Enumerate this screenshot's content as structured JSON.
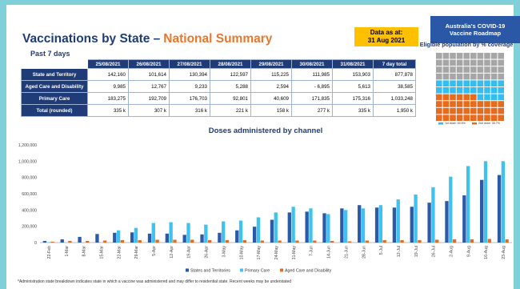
{
  "header": {
    "title": "Vaccinations by State –",
    "title_highlight": "National Summary",
    "date_label": "Data as at:",
    "date": "31 Aug 2021",
    "roadmap": "Australia's COVID-19 Vaccine Roadmap"
  },
  "table": {
    "title": "Past 7 days",
    "columns": [
      "25/08/2021",
      "26/08/2021",
      "27/08/2021",
      "28/08/2021",
      "29/08/2021",
      "30/08/2021",
      "31/08/2021",
      "7 day total"
    ],
    "rows": [
      {
        "label": "State and Territory",
        "cells": [
          "142,160",
          "101,614",
          "130,394",
          "122,597",
          "115,225",
          "111,985",
          "153,903",
          "877,878"
        ]
      },
      {
        "label": "Aged Care and Disability",
        "cells": [
          "9,985",
          "12,767",
          "9,233",
          "5,288",
          "2,594",
          "- 6,895",
          "5,613",
          "38,585"
        ]
      },
      {
        "label": "Primary Care",
        "cells": [
          "183,275",
          "192,709",
          "176,703",
          "92,801",
          "40,609",
          "171,835",
          "175,316",
          "1,033,248"
        ]
      },
      {
        "label": "Total (rounded)",
        "cells": [
          "335 k",
          "307 k",
          "316 k",
          "221 k",
          "158 k",
          "277 k",
          "335 k",
          "1,950 k"
        ]
      }
    ]
  },
  "chart_data": [
    {
      "type": "waffle",
      "title": "Eligible population by % coverage",
      "series": [
        {
          "name": "1st dose: 59.6%",
          "color": "#33bdf0",
          "values": [
            59.6
          ]
        },
        {
          "name": "2nd dose: 35.7%",
          "color": "#e66b1f",
          "values": [
            35.7
          ]
        }
      ]
    },
    {
      "type": "bar",
      "title": "Doses administered by channel",
      "categories": [
        "22-Feb",
        "1-Mar",
        "8-Mar",
        "15-Mar",
        "22-Mar",
        "29-Mar",
        "5-Apr",
        "12-Apr",
        "19-Apr",
        "26-Apr",
        "3-May",
        "10-May",
        "17-May",
        "24-May",
        "31-May",
        "7-Jun",
        "14-Jun",
        "21-Jun",
        "28-Jun",
        "5-Jul",
        "12-Jul",
        "19-Jul",
        "26-Jul",
        "2-Aug",
        "9-Aug",
        "16-Aug",
        "23-Aug"
      ],
      "series": [
        {
          "name": "States and Territories",
          "color": "#2a5aa8",
          "values": [
            20000,
            40000,
            70000,
            105000,
            120000,
            125000,
            110000,
            110000,
            95000,
            100000,
            120000,
            150000,
            195000,
            280000,
            370000,
            380000,
            360000,
            420000,
            460000,
            430000,
            430000,
            440000,
            490000,
            510000,
            580000,
            770000,
            830000
          ]
        },
        {
          "name": "Primary Care",
          "color": "#3ec3f0",
          "values": [
            5000,
            0,
            0,
            0,
            150000,
            180000,
            240000,
            250000,
            240000,
            220000,
            260000,
            270000,
            310000,
            370000,
            440000,
            420000,
            350000,
            400000,
            420000,
            460000,
            530000,
            590000,
            680000,
            810000,
            940000,
            1000000,
            1000000
          ]
        },
        {
          "name": "Aged Care and Disability",
          "color": "#e66b1f",
          "values": [
            10000,
            20000,
            20000,
            25000,
            30000,
            30000,
            35000,
            35000,
            35000,
            30000,
            30000,
            30000,
            25000,
            25000,
            25000,
            25000,
            20000,
            15000,
            25000,
            30000,
            30000,
            30000,
            35000,
            40000,
            40000,
            45000,
            40000
          ]
        }
      ],
      "ylim": [
        0,
        1200000
      ],
      "yticks": [
        0,
        {
          "value": 200000,
          "label": "200,000"
        },
        {
          "value": 400000,
          "label": "400,000"
        },
        {
          "value": 600000,
          "label": "600,000"
        },
        {
          "value": 800000,
          "label": "800,000"
        },
        {
          "value": 1000000,
          "label": "1,000,000"
        },
        {
          "value": 1200000,
          "label": "1,200,000"
        }
      ],
      "grid": false
    }
  ],
  "footnote": "*Administration state breakdown indicates state in which a vaccine was administered and may differ to residential state. Recent weeks may be understated"
}
